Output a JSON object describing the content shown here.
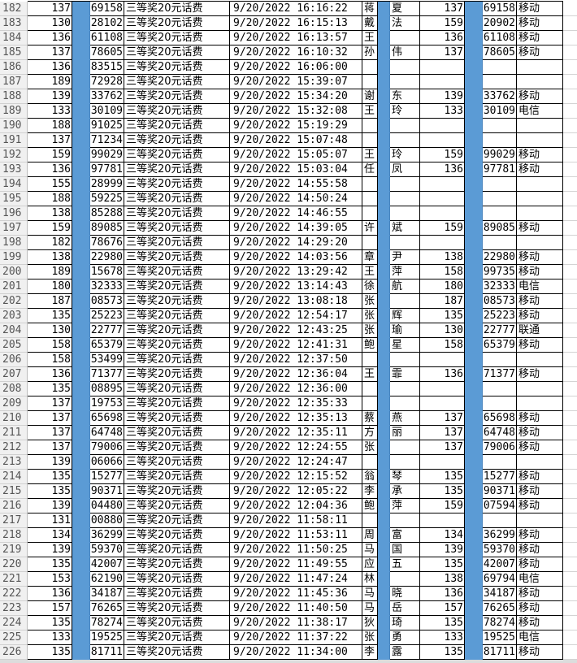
{
  "colors": {
    "hidden_column": "#5b9bd5",
    "grid": "#000000"
  },
  "rows": [
    [
      "182",
      "137",
      "69158",
      "三等奖20元话费",
      "9/20/2022  16:16:22",
      "蒋",
      "夏",
      "137",
      "69158",
      "移动"
    ],
    [
      "183",
      "130",
      "28102",
      "三等奖20元话费",
      "9/20/2022  16:15:13",
      "戴",
      "法",
      "159",
      "20902",
      "移动"
    ],
    [
      "184",
      "136",
      "61108",
      "三等奖20元话费",
      "9/20/2022  16:13:57",
      "王",
      "",
      "136",
      "61108",
      "移动"
    ],
    [
      "185",
      "137",
      "78605",
      "三等奖20元话费",
      "9/20/2022  16:10:32",
      "孙",
      "伟",
      "137",
      "78605",
      "移动"
    ],
    [
      "186",
      "136",
      "83515",
      "三等奖20元话费",
      "9/20/2022  16:06:00",
      "",
      "",
      "",
      "",
      ""
    ],
    [
      "187",
      "189",
      "72928",
      "三等奖20元话费",
      "9/20/2022  15:39:07",
      "",
      "",
      "",
      "",
      ""
    ],
    [
      "188",
      "139",
      "33762",
      "三等奖20元话费",
      "9/20/2022  15:34:20",
      "谢",
      "东",
      "139",
      "33762",
      "移动"
    ],
    [
      "189",
      "133",
      "30109",
      "三等奖20元话费",
      "9/20/2022  15:32:08",
      "王",
      "玲",
      "133",
      "30109",
      "电信"
    ],
    [
      "190",
      "188",
      "91025",
      "三等奖20元话费",
      "9/20/2022  15:19:29",
      "",
      "",
      "",
      "",
      ""
    ],
    [
      "191",
      "137",
      "71234",
      "三等奖20元话费",
      "9/20/2022  15:07:48",
      "",
      "",
      "",
      "",
      ""
    ],
    [
      "192",
      "159",
      "99029",
      "三等奖20元话费",
      "9/20/2022  15:05:07",
      "王",
      "玲",
      "159",
      "99029",
      "移动"
    ],
    [
      "193",
      "136",
      "97781",
      "三等奖20元话费",
      "9/20/2022  15:03:04",
      "任",
      "凤",
      "136",
      "97781",
      "移动"
    ],
    [
      "194",
      "155",
      "28999",
      "三等奖20元话费",
      "9/20/2022  14:55:58",
      "",
      "",
      "",
      "",
      ""
    ],
    [
      "195",
      "188",
      "59225",
      "三等奖20元话费",
      "9/20/2022  14:50:24",
      "",
      "",
      "",
      "",
      ""
    ],
    [
      "196",
      "138",
      "85288",
      "三等奖20元话费",
      "9/20/2022  14:46:55",
      "",
      "",
      "",
      "",
      ""
    ],
    [
      "197",
      "159",
      "89085",
      "三等奖20元话费",
      "9/20/2022  14:39:05",
      "许",
      "斌",
      "159",
      "89085",
      "移动"
    ],
    [
      "198",
      "182",
      "78676",
      "三等奖20元话费",
      "9/20/2022  14:29:20",
      "",
      "",
      "",
      "",
      ""
    ],
    [
      "199",
      "138",
      "22980",
      "三等奖20元话费",
      "9/20/2022  14:03:56",
      "章",
      "尹",
      "138",
      "22980",
      "移动"
    ],
    [
      "200",
      "189",
      "15678",
      "三等奖20元话费",
      "9/20/2022  13:29:42",
      "王",
      "萍",
      "158",
      "99735",
      "移动"
    ],
    [
      "201",
      "180",
      "32333",
      "三等奖20元话费",
      "9/20/2022  13:14:43",
      "徐",
      "航",
      "180",
      "32333",
      "电信"
    ],
    [
      "202",
      "187",
      "08573",
      "三等奖20元话费",
      "9/20/2022  13:08:18",
      "张",
      "",
      "187",
      "08573",
      "移动"
    ],
    [
      "203",
      "135",
      "25223",
      "三等奖20元话费",
      "9/20/2022  12:54:17",
      "张",
      "辉",
      "135",
      "25223",
      "移动"
    ],
    [
      "204",
      "130",
      "22777",
      "三等奖20元话费",
      "9/20/2022  12:43:25",
      "张",
      "瑜",
      "130",
      "22777",
      "联通"
    ],
    [
      "205",
      "158",
      "65379",
      "三等奖20元话费",
      "9/20/2022  12:41:31",
      "鲍",
      "星",
      "158",
      "65379",
      "移动"
    ],
    [
      "206",
      "158",
      "53499",
      "三等奖20元话费",
      "9/20/2022  12:37:50",
      "",
      "",
      "",
      "",
      ""
    ],
    [
      "207",
      "136",
      "71377",
      "三等奖20元话费",
      "9/20/2022  12:36:04",
      "王",
      "霏",
      "136",
      "71377",
      "移动"
    ],
    [
      "208",
      "135",
      "08895",
      "三等奖20元话费",
      "9/20/2022  12:36:00",
      "",
      "",
      "",
      "",
      ""
    ],
    [
      "209",
      "137",
      "19753",
      "三等奖20元话费",
      "9/20/2022  12:35:33",
      "",
      "",
      "",
      "",
      ""
    ],
    [
      "210",
      "137",
      "65698",
      "三等奖20元话费",
      "9/20/2022  12:35:13",
      "蔡",
      "燕",
      "137",
      "65698",
      "移动"
    ],
    [
      "211",
      "137",
      "64748",
      "三等奖20元话费",
      "9/20/2022  12:35:11",
      "方",
      "丽",
      "137",
      "64748",
      "移动"
    ],
    [
      "212",
      "137",
      "79006",
      "三等奖20元话费",
      "9/20/2022  12:24:55",
      "张",
      "",
      "137",
      "79006",
      "移动"
    ],
    [
      "213",
      "139",
      "06066",
      "三等奖20元话费",
      "9/20/2022  12:24:47",
      "",
      "",
      "",
      "",
      ""
    ],
    [
      "214",
      "135",
      "15277",
      "三等奖20元话费",
      "9/20/2022  12:15:52",
      "翁",
      "琴",
      "135",
      "15277",
      "移动"
    ],
    [
      "215",
      "135",
      "90371",
      "三等奖20元话费",
      "9/20/2022  12:05:22",
      "李",
      "承",
      "135",
      "90371",
      "移动"
    ],
    [
      "216",
      "139",
      "04480",
      "三等奖20元话费",
      "9/20/2022  12:04:36",
      "鲍",
      "萍",
      "159",
      "07594",
      "移动"
    ],
    [
      "217",
      "131",
      "00880",
      "三等奖20元话费",
      "9/20/2022  11:58:11",
      "",
      "",
      "",
      "",
      ""
    ],
    [
      "218",
      "134",
      "36299",
      "三等奖20元话费",
      "9/20/2022  11:53:11",
      "周",
      "富",
      "134",
      "36299",
      "移动"
    ],
    [
      "219",
      "139",
      "59370",
      "三等奖20元话费",
      "9/20/2022  11:50:25",
      "马",
      "国",
      "139",
      "59370",
      "移动"
    ],
    [
      "220",
      "135",
      "42007",
      "三等奖20元话费",
      "9/20/2022  11:49:55",
      "应",
      "五",
      "135",
      "42007",
      "移动"
    ],
    [
      "221",
      "153",
      "62190",
      "三等奖20元话费",
      "9/20/2022  11:47:24",
      "林",
      "",
      "138",
      "69794",
      "电信"
    ],
    [
      "222",
      "136",
      "34187",
      "三等奖20元话费",
      "9/20/2022  11:45:36",
      "马",
      "晓",
      "136",
      "34187",
      "移动"
    ],
    [
      "223",
      "157",
      "76265",
      "三等奖20元话费",
      "9/20/2022  11:40:50",
      "马",
      "岳",
      "157",
      "76265",
      "移动"
    ],
    [
      "224",
      "135",
      "78274",
      "三等奖20元话费",
      "9/20/2022  11:38:17",
      "狄",
      "琦",
      "135",
      "78274",
      "移动"
    ],
    [
      "225",
      "133",
      "19525",
      "三等奖20元话费",
      "9/20/2022  11:37:22",
      "张",
      "勇",
      "133",
      "19525",
      "电信"
    ],
    [
      "226",
      "135",
      "81711",
      "三等奖20元话费",
      "9/20/2022  11:34:00",
      "李",
      "露",
      "135",
      "81711",
      "移动"
    ]
  ]
}
